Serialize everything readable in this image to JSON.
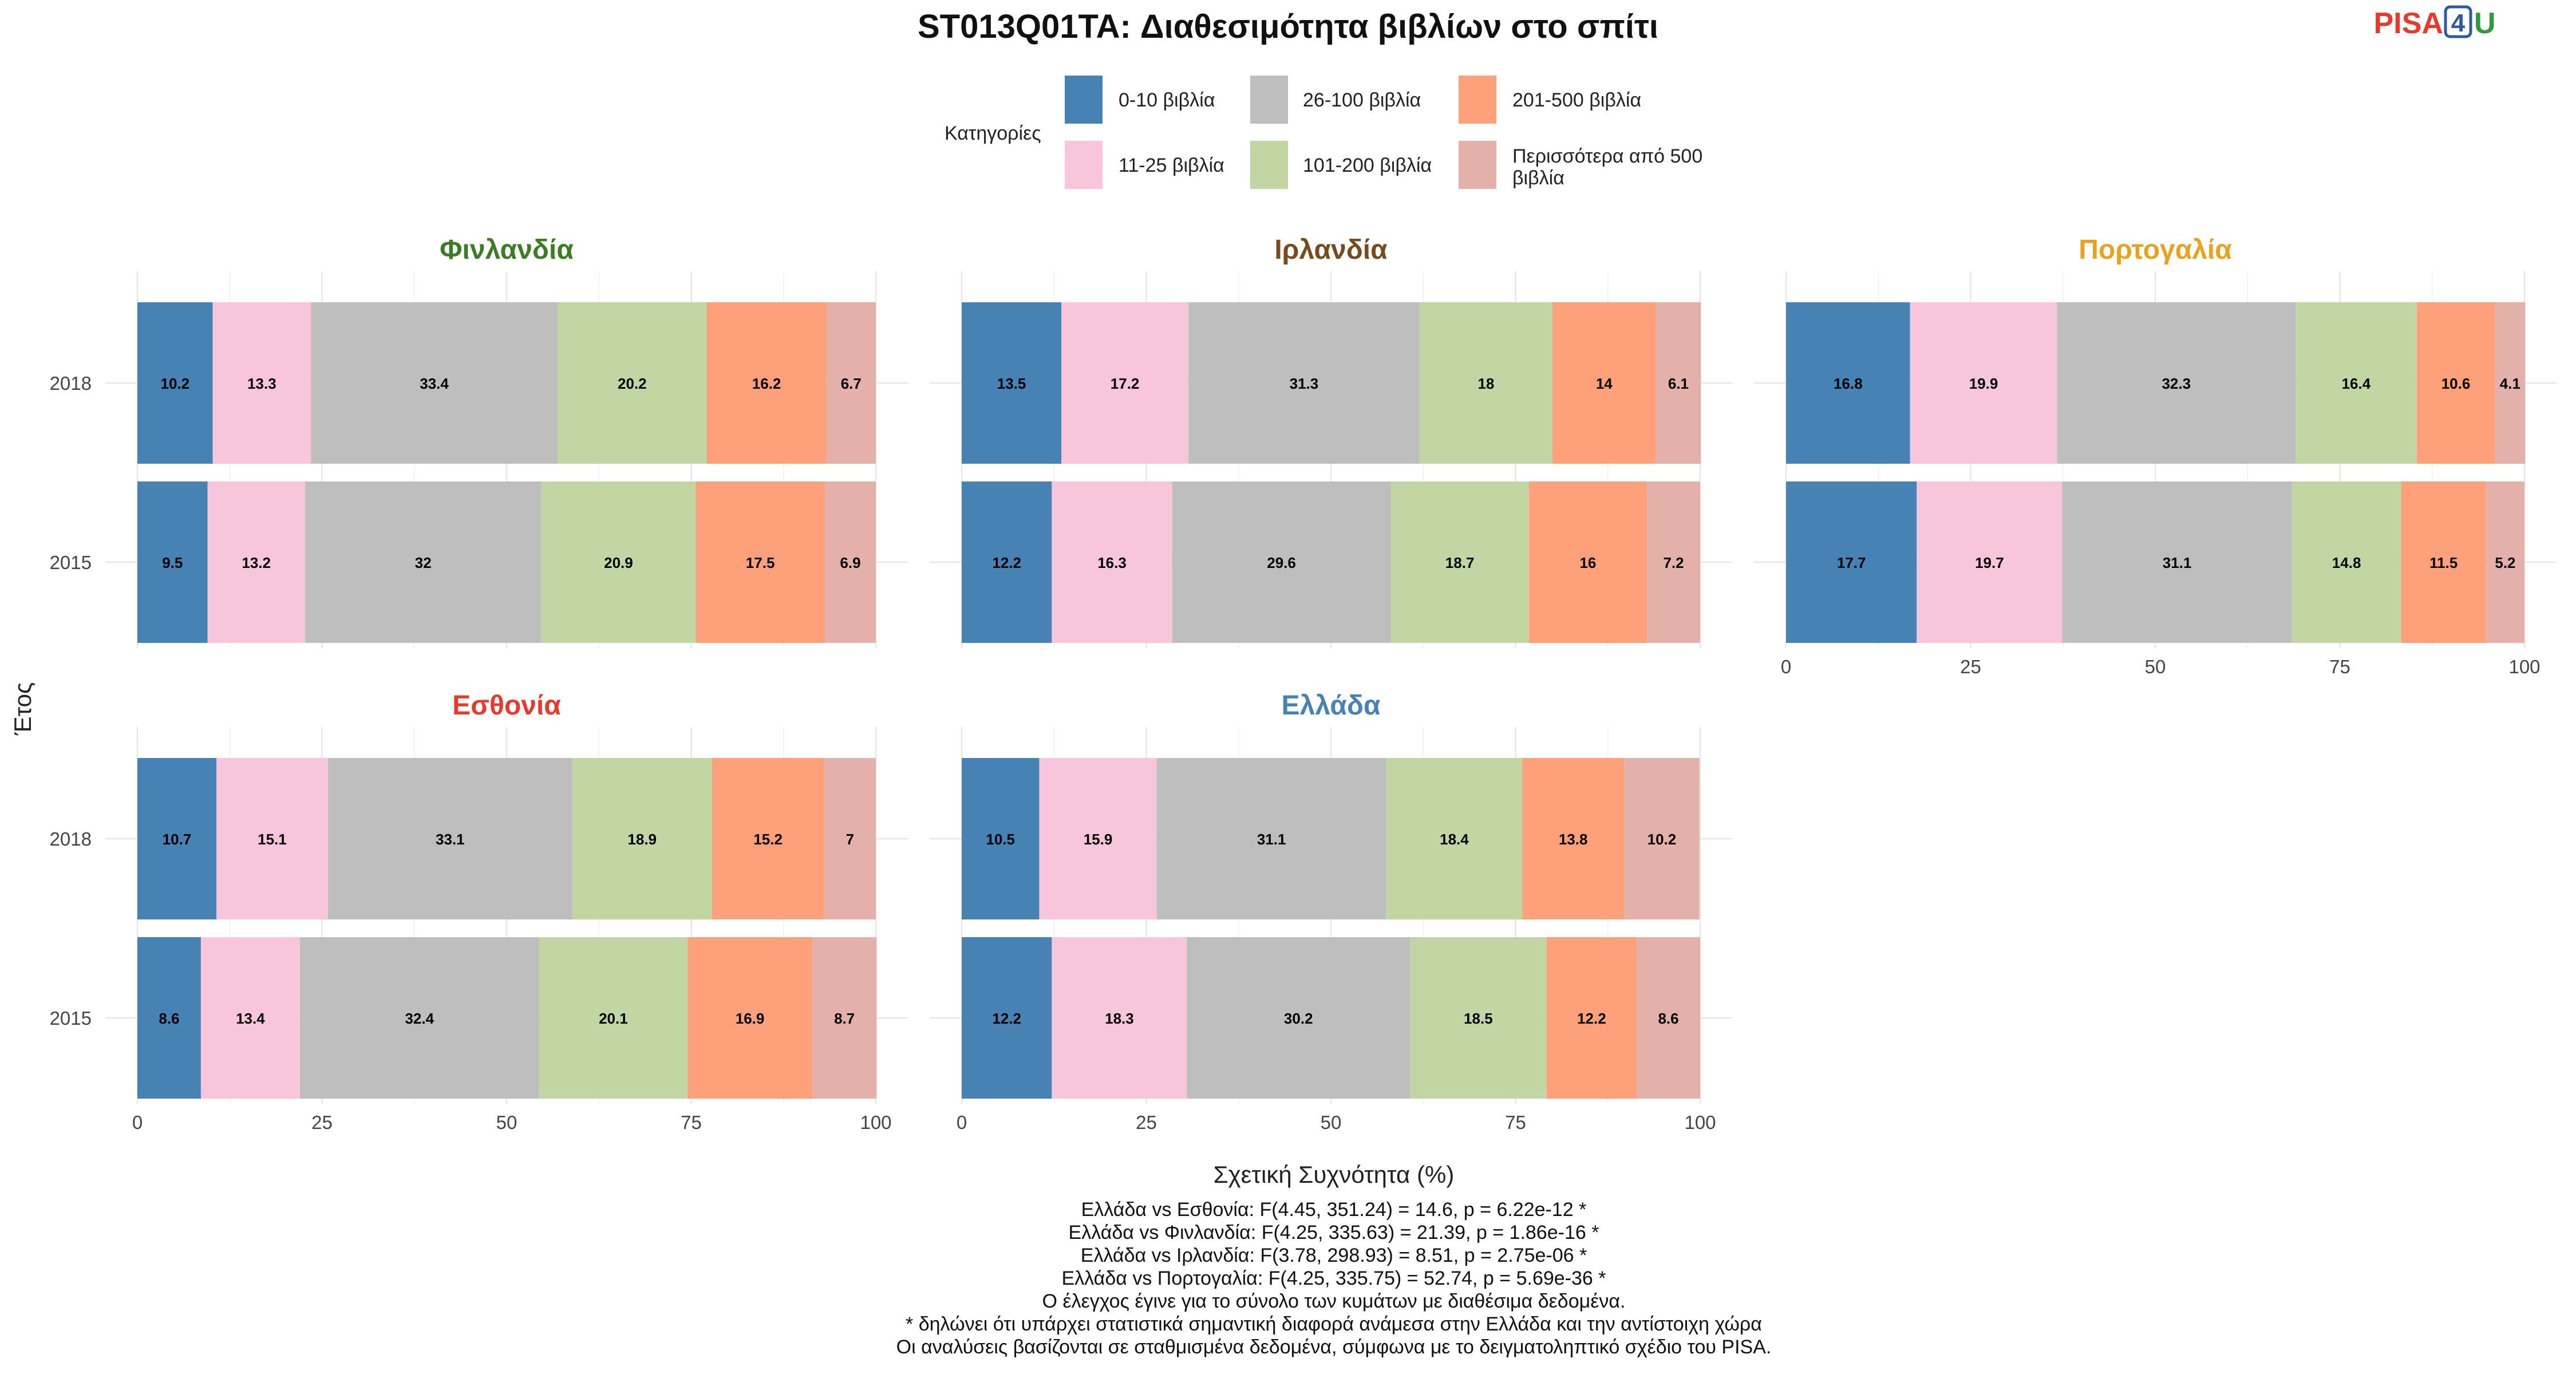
{
  "title": "ST013Q01TA: Διαθεσιμότητα βιβλίων στο σπίτι",
  "logo": {
    "part_a": "PISA",
    "part_b": "4",
    "part_c": "U"
  },
  "legend": {
    "title": "Κατηγορίες",
    "items": [
      {
        "label": "0-10 βιβλία",
        "color": "#4682b4"
      },
      {
        "label": "11-25 βιβλία",
        "color": "#f7c6dc"
      },
      {
        "label": "26-100 βιβλία",
        "color": "#bebebe"
      },
      {
        "label": "101-200 βιβλία",
        "color": "#c2d6a4"
      },
      {
        "label": "201-500 βιβλία",
        "color": "#fea07a"
      },
      {
        "label_line1": "Περισσότερα από 500",
        "label_line2": "βιβλία",
        "color": "#e4b1aa"
      }
    ]
  },
  "axes": {
    "y_title": "Έτος",
    "x_title": "Σχετική Συχνότητα (%)",
    "x_ticks": [
      "0",
      "25",
      "50",
      "75",
      "100"
    ]
  },
  "chart_data": {
    "type": "bar",
    "orientation": "horizontal",
    "stacked": true,
    "xlim": [
      0,
      100
    ],
    "categories": [
      "2018",
      "2015"
    ],
    "series_names": [
      "0-10 βιβλία",
      "11-25 βιβλία",
      "26-100 βιβλία",
      "101-200 βιβλία",
      "201-500 βιβλία",
      "Περισσότερα από 500 βιβλία"
    ],
    "panels": [
      {
        "country": "Φινλανδία",
        "title_color": "#3a7d24",
        "values": {
          "2018": [
            10.2,
            13.3,
            33.4,
            20.2,
            16.2,
            6.7
          ],
          "2015": [
            9.5,
            13.2,
            32,
            20.9,
            17.5,
            6.9
          ]
        }
      },
      {
        "country": "Ιρλανδία",
        "title_color": "#7a4a1f",
        "values": {
          "2018": [
            13.5,
            17.2,
            31.3,
            18,
            14,
            6.1
          ],
          "2015": [
            12.2,
            16.3,
            29.6,
            18.7,
            16,
            7.2
          ]
        }
      },
      {
        "country": "Πορτογαλία",
        "title_color": "#e8a222",
        "values": {
          "2018": [
            16.8,
            19.9,
            32.3,
            16.4,
            10.6,
            4.1
          ],
          "2015": [
            17.7,
            19.7,
            31.1,
            14.8,
            11.5,
            5.2
          ]
        }
      },
      {
        "country": "Εσθονία",
        "title_color": "#e43b2e",
        "values": {
          "2018": [
            10.7,
            15.1,
            33.1,
            18.9,
            15.2,
            7
          ],
          "2015": [
            8.6,
            13.4,
            32.4,
            20.1,
            16.9,
            8.7
          ]
        }
      },
      {
        "country": "Ελλάδα",
        "title_color": "#4682b4",
        "values": {
          "2018": [
            10.5,
            15.9,
            31.1,
            18.4,
            13.8,
            10.2
          ],
          "2015": [
            12.2,
            18.3,
            30.2,
            18.5,
            12.2,
            8.6
          ]
        }
      }
    ]
  },
  "footnotes": [
    "Ελλάδα vs Εσθονία: F(4.45, 351.24) = 14.6, p = 6.22e-12 *",
    "Ελλάδα vs Φινλανδία: F(4.25, 335.63) = 21.39, p = 1.86e-16 *",
    "Ελλάδα vs Ιρλανδία: F(3.78, 298.93) = 8.51, p = 2.75e-06 *",
    "Ελλάδα vs Πορτογαλία: F(4.25, 335.75) = 52.74, p = 5.69e-36 *",
    "Ο έλεγχος έγινε για το σύνολο των κυμάτων με διαθέσιμα δεδομένα.",
    "* δηλώνει ότι υπάρχει στατιστικά σημαντική διαφορά ανάμεσα στην Ελλάδα και την αντίστοιχη χώρα",
    "Οι αναλύσεις βασίζονται σε σταθμισμένα δεδομένα, σύμφωνα με το δειγματοληπτικό σχέδιο του PISA."
  ]
}
